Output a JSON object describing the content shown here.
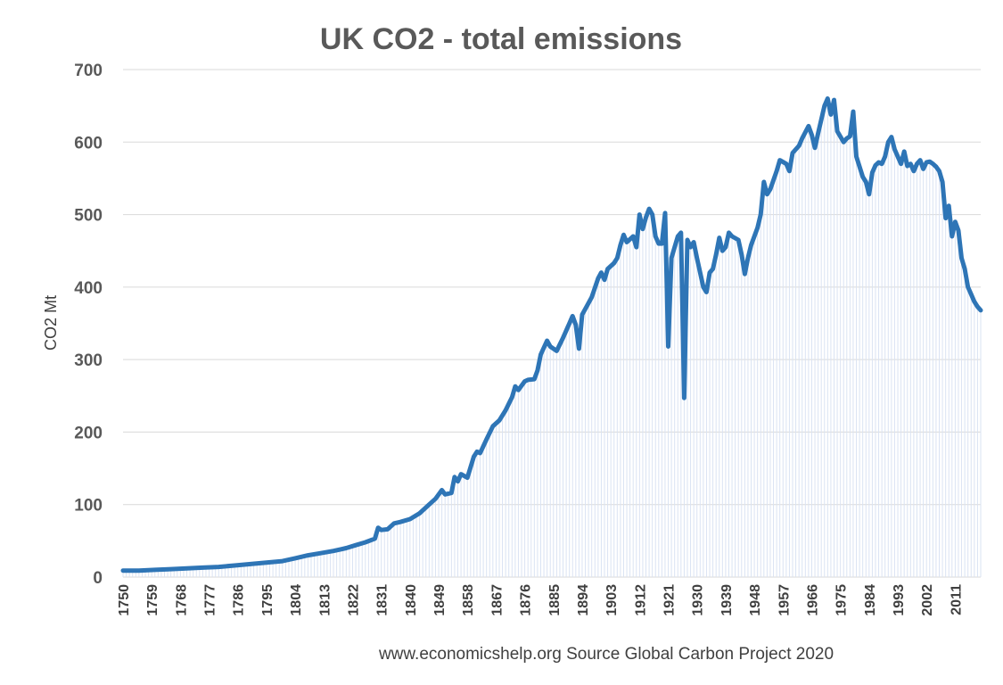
{
  "chart_data": {
    "type": "line",
    "title": "UK CO2 - total emissions",
    "ylabel": "CO2 Mt",
    "xlabel": "",
    "source_note": "www.economicshelp.org  Source Global Carbon Project 2020",
    "ylim": [
      0,
      700
    ],
    "yticks": [
      0,
      100,
      200,
      300,
      400,
      500,
      600,
      700
    ],
    "xlim": [
      1750,
      2019
    ],
    "xticks": [
      1750,
      1759,
      1768,
      1777,
      1786,
      1795,
      1804,
      1813,
      1822,
      1831,
      1840,
      1849,
      1858,
      1867,
      1876,
      1885,
      1894,
      1903,
      1912,
      1921,
      1930,
      1939,
      1948,
      1957,
      1966,
      1975,
      1984,
      1993,
      2002,
      2011
    ],
    "grid": true,
    "legend": "none",
    "colors": {
      "line": "#2e75b6",
      "fill_lines": "#dae3f3",
      "grid": "#d9d9d9",
      "text": "#595959"
    },
    "series": [
      {
        "points": [
          [
            1750,
            9
          ],
          [
            1755,
            9
          ],
          [
            1760,
            10
          ],
          [
            1765,
            11
          ],
          [
            1770,
            12
          ],
          [
            1775,
            13
          ],
          [
            1780,
            14
          ],
          [
            1785,
            16
          ],
          [
            1790,
            18
          ],
          [
            1795,
            20
          ],
          [
            1800,
            22
          ],
          [
            1804,
            26
          ],
          [
            1808,
            30
          ],
          [
            1812,
            33
          ],
          [
            1816,
            36
          ],
          [
            1820,
            40
          ],
          [
            1823,
            44
          ],
          [
            1826,
            48
          ],
          [
            1829,
            53
          ],
          [
            1830,
            68
          ],
          [
            1831,
            65
          ],
          [
            1833,
            66
          ],
          [
            1835,
            74
          ],
          [
            1837,
            76
          ],
          [
            1840,
            80
          ],
          [
            1843,
            88
          ],
          [
            1846,
            100
          ],
          [
            1848,
            108
          ],
          [
            1850,
            120
          ],
          [
            1851,
            114
          ],
          [
            1853,
            116
          ],
          [
            1854,
            138
          ],
          [
            1855,
            132
          ],
          [
            1856,
            142
          ],
          [
            1858,
            137
          ],
          [
            1860,
            166
          ],
          [
            1861,
            173
          ],
          [
            1862,
            171
          ],
          [
            1864,
            190
          ],
          [
            1866,
            208
          ],
          [
            1868,
            216
          ],
          [
            1870,
            230
          ],
          [
            1872,
            248
          ],
          [
            1873,
            263
          ],
          [
            1874,
            258
          ],
          [
            1876,
            270
          ],
          [
            1877,
            272
          ],
          [
            1879,
            273
          ],
          [
            1880,
            285
          ],
          [
            1881,
            307
          ],
          [
            1883,
            326
          ],
          [
            1884,
            318
          ],
          [
            1886,
            312
          ],
          [
            1888,
            330
          ],
          [
            1890,
            350
          ],
          [
            1891,
            360
          ],
          [
            1892,
            348
          ],
          [
            1893,
            315
          ],
          [
            1894,
            362
          ],
          [
            1895,
            370
          ],
          [
            1897,
            386
          ],
          [
            1899,
            412
          ],
          [
            1900,
            420
          ],
          [
            1901,
            410
          ],
          [
            1902,
            425
          ],
          [
            1904,
            433
          ],
          [
            1905,
            440
          ],
          [
            1906,
            458
          ],
          [
            1907,
            472
          ],
          [
            1908,
            462
          ],
          [
            1910,
            470
          ],
          [
            1911,
            455
          ],
          [
            1912,
            500
          ],
          [
            1913,
            480
          ],
          [
            1914,
            496
          ],
          [
            1915,
            508
          ],
          [
            1916,
            500
          ],
          [
            1917,
            470
          ],
          [
            1918,
            460
          ],
          [
            1919,
            460
          ],
          [
            1920,
            502
          ],
          [
            1921,
            318
          ],
          [
            1922,
            440
          ],
          [
            1923,
            455
          ],
          [
            1924,
            470
          ],
          [
            1925,
            475
          ],
          [
            1926,
            247
          ],
          [
            1927,
            465
          ],
          [
            1928,
            455
          ],
          [
            1929,
            462
          ],
          [
            1930,
            440
          ],
          [
            1931,
            420
          ],
          [
            1932,
            400
          ],
          [
            1933,
            393
          ],
          [
            1934,
            420
          ],
          [
            1935,
            425
          ],
          [
            1936,
            445
          ],
          [
            1937,
            468
          ],
          [
            1938,
            450
          ],
          [
            1939,
            455
          ],
          [
            1940,
            475
          ],
          [
            1941,
            470
          ],
          [
            1943,
            465
          ],
          [
            1944,
            445
          ],
          [
            1945,
            418
          ],
          [
            1946,
            440
          ],
          [
            1947,
            458
          ],
          [
            1949,
            482
          ],
          [
            1950,
            500
          ],
          [
            1951,
            545
          ],
          [
            1952,
            528
          ],
          [
            1953,
            535
          ],
          [
            1955,
            560
          ],
          [
            1956,
            575
          ],
          [
            1958,
            570
          ],
          [
            1959,
            560
          ],
          [
            1960,
            585
          ],
          [
            1962,
            595
          ],
          [
            1963,
            605
          ],
          [
            1965,
            622
          ],
          [
            1966,
            610
          ],
          [
            1967,
            592
          ],
          [
            1968,
            612
          ],
          [
            1970,
            650
          ],
          [
            1971,
            660
          ],
          [
            1972,
            638
          ],
          [
            1973,
            658
          ],
          [
            1974,
            615
          ],
          [
            1976,
            600
          ],
          [
            1977,
            605
          ],
          [
            1978,
            608
          ],
          [
            1979,
            642
          ],
          [
            1980,
            580
          ],
          [
            1982,
            552
          ],
          [
            1983,
            545
          ],
          [
            1984,
            528
          ],
          [
            1985,
            558
          ],
          [
            1986,
            568
          ],
          [
            1987,
            572
          ],
          [
            1988,
            570
          ],
          [
            1989,
            580
          ],
          [
            1990,
            600
          ],
          [
            1991,
            607
          ],
          [
            1992,
            590
          ],
          [
            1994,
            570
          ],
          [
            1995,
            587
          ],
          [
            1996,
            567
          ],
          [
            1997,
            570
          ],
          [
            1998,
            560
          ],
          [
            1999,
            570
          ],
          [
            2000,
            575
          ],
          [
            2001,
            563
          ],
          [
            2002,
            572
          ],
          [
            2003,
            573
          ],
          [
            2004,
            570
          ],
          [
            2005,
            566
          ],
          [
            2006,
            560
          ],
          [
            2007,
            545
          ],
          [
            2008,
            495
          ],
          [
            2009,
            512
          ],
          [
            2010,
            470
          ],
          [
            2011,
            490
          ],
          [
            2012,
            478
          ],
          [
            2013,
            440
          ],
          [
            2014,
            425
          ],
          [
            2015,
            400
          ],
          [
            2016,
            390
          ],
          [
            2017,
            380
          ],
          [
            2018,
            373
          ],
          [
            2019,
            368
          ]
        ]
      }
    ]
  }
}
